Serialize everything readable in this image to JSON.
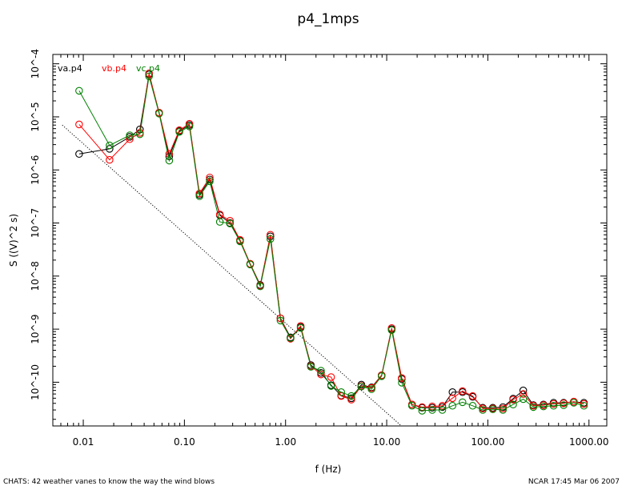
{
  "chart_data": {
    "type": "scatter",
    "title": "p4_1mps",
    "xlabel": "f (Hz)",
    "ylabel": "S ((V)^2 s)",
    "xscale": "log",
    "yscale": "log",
    "xlim": [
      0.005,
      1500
    ],
    "ylim": [
      1.5e-11,
      0.00015
    ],
    "x_ticks": [
      {
        "value": 0.01,
        "label": "0.01"
      },
      {
        "value": 0.1,
        "label": "0.10"
      },
      {
        "value": 1,
        "label": "1.00"
      },
      {
        "value": 10,
        "label": "10.00"
      },
      {
        "value": 100,
        "label": "100.00"
      },
      {
        "value": 1000,
        "label": "1000.00"
      }
    ],
    "y_ticks": [
      {
        "value": 1e-10,
        "label": "10^-10"
      },
      {
        "value": 1e-09,
        "label": "10^-9"
      },
      {
        "value": 1e-08,
        "label": "10^-8"
      },
      {
        "value": 1e-07,
        "label": "10^-7"
      },
      {
        "value": 1e-06,
        "label": "10^-6"
      },
      {
        "value": 1e-05,
        "label": "10^-5"
      },
      {
        "value": 0.0001,
        "label": "10^-4"
      }
    ],
    "grid": false,
    "legend": "top-left",
    "x": [
      0.0091,
      0.0182,
      0.0288,
      0.0363,
      0.0447,
      0.0562,
      0.0708,
      0.0891,
      0.112,
      0.141,
      0.178,
      0.224,
      0.282,
      0.355,
      0.447,
      0.562,
      0.708,
      0.891,
      1.12,
      1.41,
      1.78,
      2.24,
      2.82,
      3.55,
      4.47,
      5.62,
      7.08,
      8.91,
      11.2,
      14.1,
      17.8,
      22.4,
      28.2,
      35.5,
      44.7,
      56.2,
      70.8,
      89.1,
      112,
      141,
      178,
      224,
      282,
      355,
      447,
      562,
      708,
      891
    ],
    "series": [
      {
        "name": "va.p4",
        "color": "#000000",
        "values": [
          2e-06,
          2.5e-06,
          4.2e-06,
          5.8e-06,
          6.3e-05,
          1.2e-05,
          1.8e-06,
          5.4e-06,
          7e-06,
          3.4e-07,
          6.6e-07,
          1.4e-07,
          1e-07,
          4.7e-08,
          1.7e-08,
          6.8e-09,
          5.6e-08,
          1.6e-09,
          7e-10,
          1.1e-09,
          2.1e-10,
          1.5e-10,
          8.8e-11,
          5.6e-11,
          5e-11,
          9e-11,
          8e-11,
          1.35e-10,
          1e-09,
          1.15e-10,
          3.8e-11,
          3.3e-11,
          3.3e-11,
          3.4e-11,
          6.5e-11,
          6.5e-11,
          5.3e-11,
          3.3e-11,
          3.3e-11,
          3.4e-11,
          4.9e-11,
          7e-11,
          3.7e-11,
          3.8e-11,
          4.1e-11,
          4.1e-11,
          4.3e-11,
          4.1e-11
        ]
      },
      {
        "name": "vb.p4",
        "color": "#ff0000",
        "values": [
          7.2e-06,
          1.55e-06,
          3.8e-06,
          5e-06,
          6.6e-05,
          1.2e-05,
          2e-06,
          5.6e-06,
          7.4e-06,
          3.6e-07,
          7.2e-07,
          1.45e-07,
          1.1e-07,
          4.8e-08,
          1.7e-08,
          6.6e-09,
          6e-08,
          1.6e-09,
          6.6e-10,
          1.15e-09,
          2e-10,
          1.4e-10,
          1.25e-10,
          5.5e-11,
          4.7e-11,
          8.5e-11,
          7.8e-11,
          1.35e-10,
          1.05e-09,
          1.2e-10,
          3.8e-11,
          3.4e-11,
          3.5e-11,
          3.6e-11,
          5e-11,
          6.8e-11,
          5.5e-11,
          3.2e-11,
          3.2e-11,
          3.2e-11,
          4.7e-11,
          6e-11,
          3.6e-11,
          3.7e-11,
          3.9e-11,
          4e-11,
          4.3e-11,
          3.9e-11
        ]
      },
      {
        "name": "vc.p4",
        "color": "#008000",
        "values": [
          3.1e-05,
          2.9e-06,
          4.5e-06,
          4.7e-06,
          5.8e-05,
          1.15e-05,
          1.5e-06,
          5.2e-06,
          6.6e-06,
          3.2e-07,
          6.1e-07,
          1.05e-07,
          9.8e-08,
          4.5e-08,
          1.65e-08,
          6.4e-09,
          5e-08,
          1.45e-09,
          6.8e-10,
          1.05e-09,
          1.95e-10,
          1.65e-10,
          8.5e-11,
          6.5e-11,
          5.5e-11,
          8.3e-11,
          7.4e-11,
          1.3e-10,
          9.6e-10,
          9.8e-11,
          3.6e-11,
          2.9e-11,
          3e-11,
          3e-11,
          3.6e-11,
          4.2e-11,
          3.6e-11,
          3e-11,
          3.1e-11,
          3e-11,
          3.8e-11,
          4.8e-11,
          3.4e-11,
          3.5e-11,
          3.6e-11,
          3.7e-11,
          4.1e-11,
          3.6e-11
        ]
      }
    ],
    "reference_line": {
      "style": "dotted",
      "color": "#000000",
      "x": [
        0.0062,
        14
      ],
      "y": [
        7e-06,
        1.5e-11
      ]
    }
  },
  "footer": {
    "left": "CHATS: 42 weather vanes to know the way the wind blows",
    "right": "NCAR 17:45 Mar 06 2007"
  }
}
